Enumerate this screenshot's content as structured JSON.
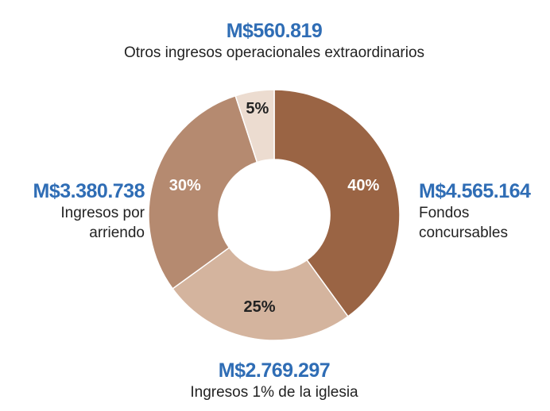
{
  "chart_data": {
    "type": "donut",
    "categories": [
      "Fondos concursables",
      "Ingresos 1% de la iglesia",
      "Ingresos por arriendo",
      "Otros ingresos operacionales extraordinarios"
    ],
    "values": [
      40,
      25,
      30,
      5
    ],
    "value_labels": [
      "40%",
      "25%",
      "30%",
      "5%"
    ],
    "amounts": [
      "M$4.565.164",
      "M$2.769.297",
      "M$3.380.738",
      "M$560.819"
    ],
    "colors": [
      "#9a6444",
      "#d4b49e",
      "#b58a70",
      "#ecdcd0"
    ]
  }
}
